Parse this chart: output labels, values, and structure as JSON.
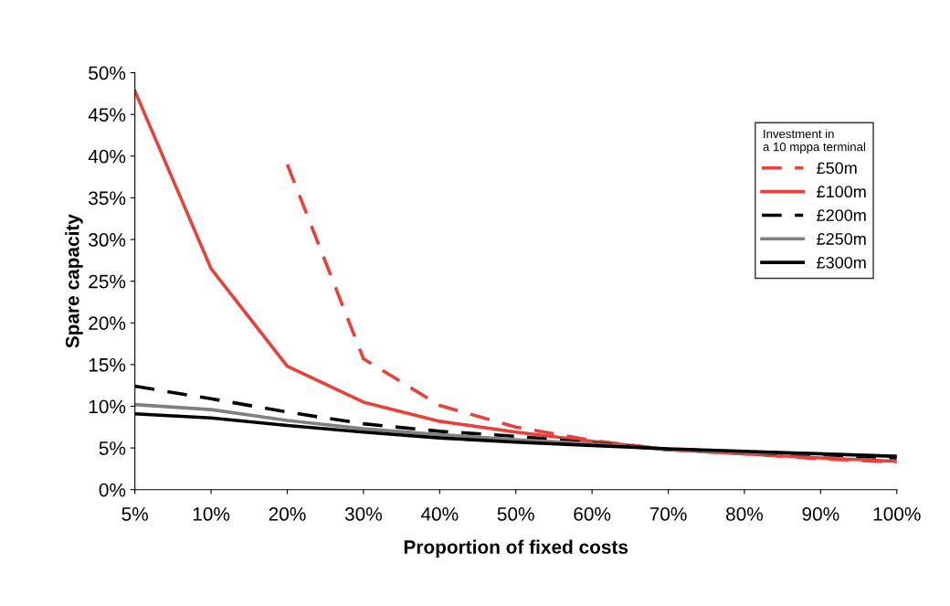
{
  "chart_data": {
    "type": "line",
    "xlabel": "Proportion of fixed costs",
    "ylabel": "Spare capacity",
    "legend_title": "Investment in\na 10 mppa terminal",
    "legend": "top right",
    "grid": false,
    "marker": "none",
    "categories": [
      "5%",
      "10%",
      "20%",
      "30%",
      "40%",
      "50%",
      "60%",
      "70%",
      "80%",
      "90%",
      "100%"
    ],
    "ylim": [
      0,
      50
    ],
    "yticks": [
      {
        "value": 0,
        "label": "0%"
      },
      {
        "value": 5,
        "label": "5%"
      },
      {
        "value": 10,
        "label": "10%"
      },
      {
        "value": 15,
        "label": "15%"
      },
      {
        "value": 20,
        "label": "20%"
      },
      {
        "value": 25,
        "label": "25%"
      },
      {
        "value": 30,
        "label": "30%"
      },
      {
        "value": 35,
        "label": "35%"
      },
      {
        "value": 40,
        "label": "40%"
      },
      {
        "value": 45,
        "label": "45%"
      },
      {
        "value": 50,
        "label": "50%"
      }
    ],
    "series": [
      {
        "name": "£50m",
        "color": "#e8403a",
        "line_style": "dashed",
        "values": [
          null,
          null,
          39,
          15.7,
          10.1,
          7.5,
          5.9,
          4.8,
          4.3,
          3.7,
          3.3
        ]
      },
      {
        "name": "£100m",
        "color": "#e8403a",
        "line_style": "solid",
        "values": [
          47.8,
          26.5,
          14.8,
          10.5,
          8.2,
          6.9,
          5.8,
          4.8,
          4.3,
          3.8,
          3.4
        ]
      },
      {
        "name": "£200m",
        "color": "#000000",
        "line_style": "dashed",
        "values": [
          12.4,
          10.9,
          9.3,
          7.9,
          7.0,
          6.4,
          5.6,
          4.8,
          4.5,
          4.2,
          3.8
        ]
      },
      {
        "name": "£250m",
        "color": "#808080",
        "line_style": "solid",
        "values": [
          10.2,
          9.6,
          8.3,
          7.3,
          6.6,
          6.0,
          5.5,
          4.8,
          4.5,
          4.3,
          4.0
        ]
      },
      {
        "name": "£300m",
        "color": "#000000",
        "line_style": "solid",
        "values": [
          9.1,
          8.6,
          7.7,
          6.9,
          6.2,
          5.7,
          5.3,
          4.9,
          4.6,
          4.3,
          4.0
        ]
      }
    ]
  }
}
